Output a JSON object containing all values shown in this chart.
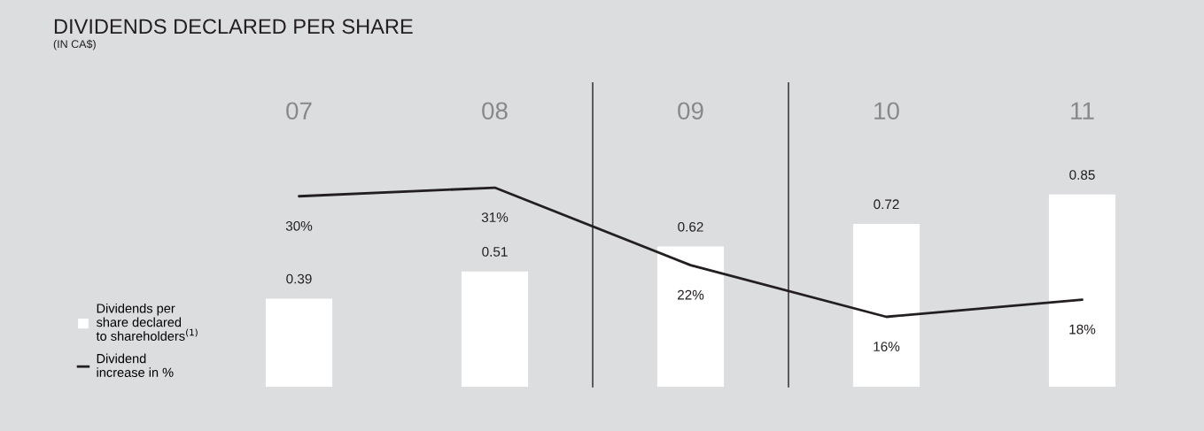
{
  "chart_data": {
    "type": "bar",
    "title": "DIVIDENDS DECLARED PER SHARE",
    "subtitle": "(IN CA$)",
    "categories": [
      "07",
      "08",
      "09",
      "10",
      "11"
    ],
    "series": [
      {
        "name": "Dividends per share declared to shareholders$^{(1)}$",
        "color": "#ffffff",
        "values": [
          0.39,
          0.51,
          0.62,
          0.72,
          0.85
        ]
      },
      {
        "name": "Dividend increase in %",
        "type": "line",
        "axis": "y2",
        "color": "#231f20",
        "values": [
          30,
          31,
          22,
          16,
          18
        ],
        "value_labels": [
          "30%",
          "31%",
          "22%",
          "16%",
          "18%"
        ]
      }
    ],
    "tick_labels": "x",
    "data_labels": true,
    "legend": "bottom left"
  }
}
